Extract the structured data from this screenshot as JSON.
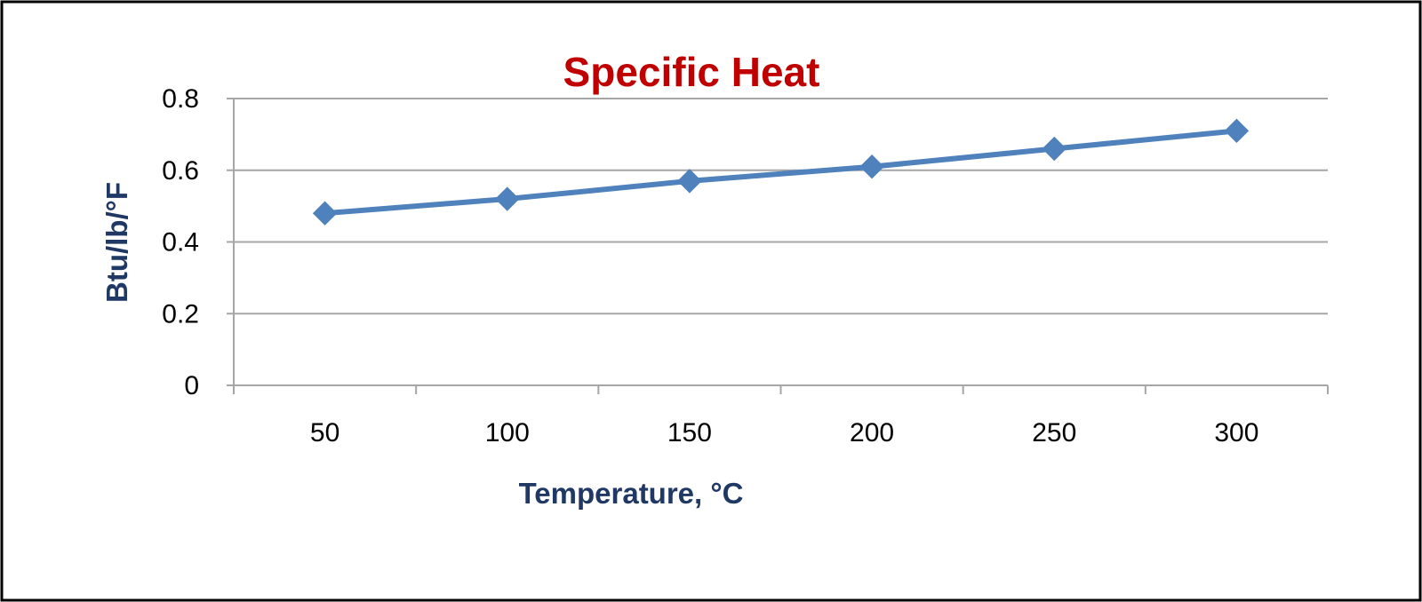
{
  "colors": {
    "title": "#c00000",
    "axis_title": "#1f3864",
    "series": "#4f81bd",
    "grid": "#a6a6a6",
    "border": "#000000"
  },
  "chart_data": {
    "type": "line",
    "title": "Specific Heat",
    "xlabel": "Temperature,  °C",
    "ylabel": "Btu/lb/°F",
    "categories": [
      "50",
      "100",
      "150",
      "200",
      "250",
      "300"
    ],
    "series": [
      {
        "values": [
          0.48,
          0.52,
          0.57,
          0.61,
          0.66,
          0.71
        ],
        "marker": "diamond"
      }
    ],
    "ylim": [
      0,
      0.8
    ],
    "yticks": [
      "0",
      "0.2",
      "0.4",
      "0.6",
      "0.8"
    ],
    "grid": true,
    "legend": "none"
  }
}
